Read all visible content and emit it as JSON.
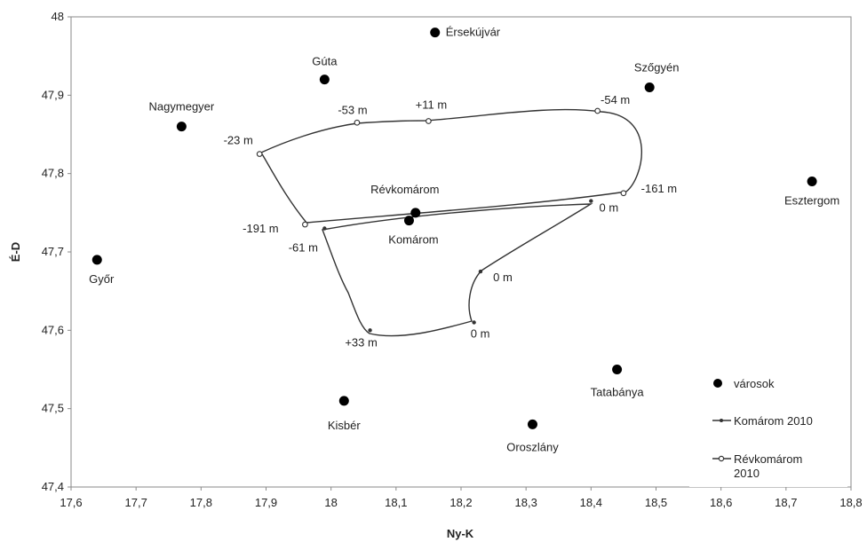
{
  "chart_data": {
    "type": "scatter",
    "xlabel": "Ny-K",
    "ylabel": "É-D",
    "xlim": [
      17.6,
      18.8
    ],
    "ylim": [
      47.4,
      48.0
    ],
    "xticks": [
      "17,6",
      "17,7",
      "17,8",
      "17,9",
      "18",
      "18,1",
      "18,2",
      "18,3",
      "18,4",
      "18,5",
      "18,6",
      "18,7",
      "18,8"
    ],
    "yticks": [
      "47,4",
      "47,5",
      "47,6",
      "47,7",
      "47,8",
      "47,9",
      "48"
    ],
    "grid": false,
    "legend_position": "bottom-right",
    "cities": [
      {
        "name": "Érsekújvár",
        "x": 18.16,
        "y": 47.98
      },
      {
        "name": "Gúta",
        "x": 17.99,
        "y": 47.92
      },
      {
        "name": "Szőgyén",
        "x": 18.49,
        "y": 47.91
      },
      {
        "name": "Nagymegyer",
        "x": 17.77,
        "y": 47.86
      },
      {
        "name": "Esztergom",
        "x": 18.74,
        "y": 47.79
      },
      {
        "name": "Révkomárom",
        "x": 18.13,
        "y": 47.75
      },
      {
        "name": "Komárom",
        "x": 18.12,
        "y": 47.74
      },
      {
        "name": "Győr",
        "x": 17.64,
        "y": 47.69
      },
      {
        "name": "Tatabánya",
        "x": 18.44,
        "y": 47.55
      },
      {
        "name": "Kisbér",
        "x": 18.02,
        "y": 47.51
      },
      {
        "name": "Oroszlány",
        "x": 18.31,
        "y": 47.48
      }
    ],
    "series": [
      {
        "name": "Komárom 2010",
        "points": [
          {
            "x": 17.99,
            "y": 47.73,
            "label": "-61 m"
          },
          {
            "x": 18.06,
            "y": 47.6,
            "label": "+33 m"
          },
          {
            "x": 18.22,
            "y": 47.61,
            "label": "0 m"
          },
          {
            "x": 18.23,
            "y": 47.675,
            "label": "0 m"
          },
          {
            "x": 18.4,
            "y": 47.765,
            "label": "0 m"
          }
        ]
      },
      {
        "name": "Révkomárom 2010",
        "points": [
          {
            "x": 17.96,
            "y": 47.735,
            "label": "-191 m"
          },
          {
            "x": 17.89,
            "y": 47.825,
            "label": "-23 m"
          },
          {
            "x": 18.04,
            "y": 47.865,
            "label": "-53 m"
          },
          {
            "x": 18.15,
            "y": 47.867,
            "label": "+11 m"
          },
          {
            "x": 18.41,
            "y": 47.88,
            "label": "-54 m"
          },
          {
            "x": 18.45,
            "y": 47.775,
            "label": "-161 m"
          }
        ]
      }
    ],
    "legend": [
      {
        "marker": "dot",
        "label": "városok"
      },
      {
        "marker": "line-small",
        "label": "Komárom 2010"
      },
      {
        "marker": "line-circle",
        "label": "Révkomárom\n2010"
      }
    ]
  }
}
